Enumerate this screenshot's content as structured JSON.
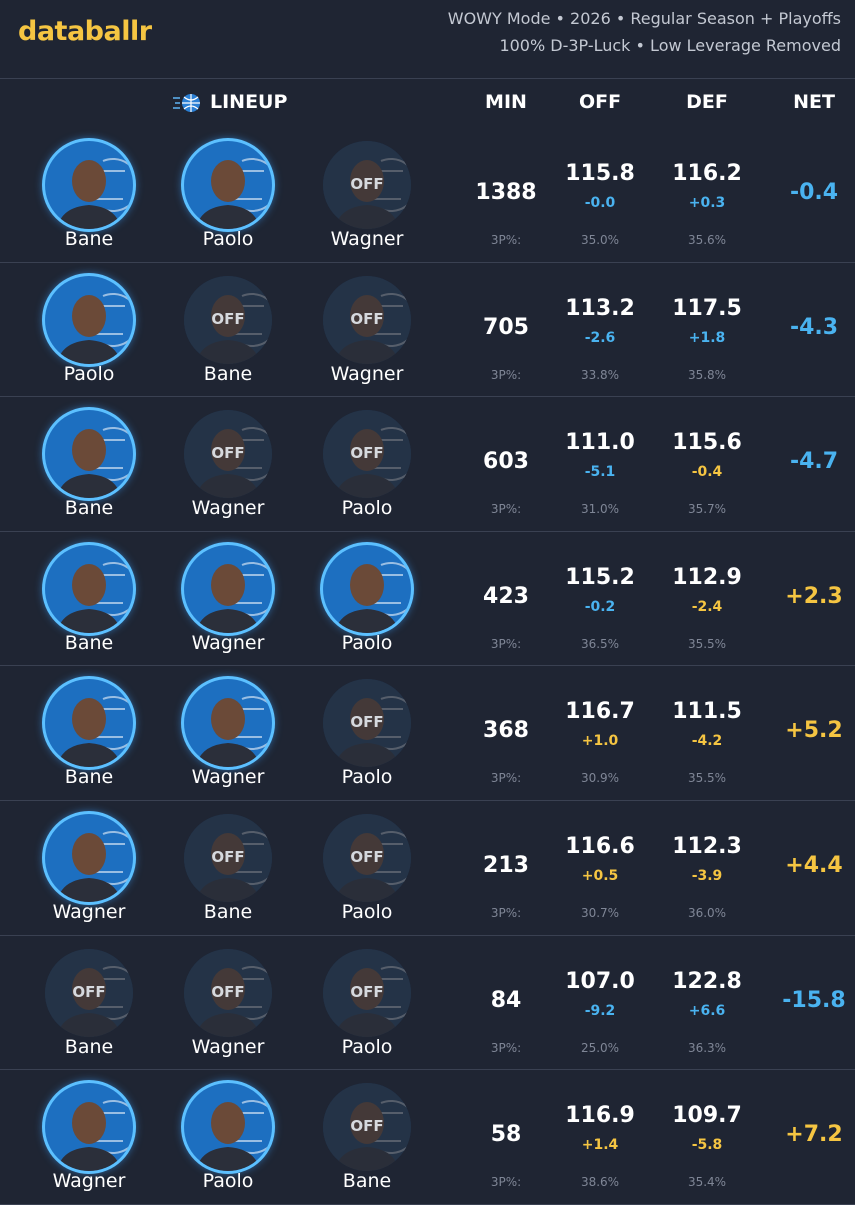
{
  "header": {
    "logo": "databallr",
    "subtitle": [
      "WOWY Mode • 2026 • Regular Season + Playoffs",
      "100% D-3P-Luck • Low Leverage Removed"
    ]
  },
  "table": {
    "columns": [
      "LINEUP",
      "MIN",
      "OFF",
      "DEF",
      "NET"
    ],
    "three_label": "3P%:",
    "rows": [
      {
        "players": [
          {
            "name": "Bane"
          },
          {
            "name": "Paolo"
          },
          {
            "name": "Wagner",
            "status": "OFF"
          }
        ],
        "min": "1388",
        "off": "115.8",
        "off_diff": "-0.0",
        "off_3p": "35.0%",
        "def": "116.2",
        "def_diff": "+0.3",
        "def_3p": "35.6%",
        "net": "-0.4"
      },
      {
        "players": [
          {
            "name": "Paolo"
          },
          {
            "name": "Bane",
            "status": "OFF"
          },
          {
            "name": "Wagner",
            "status": "OFF"
          }
        ],
        "min": "705",
        "off": "113.2",
        "off_diff": "-2.6",
        "off_3p": "33.8%",
        "def": "117.5",
        "def_diff": "+1.8",
        "def_3p": "35.8%",
        "net": "-4.3"
      },
      {
        "players": [
          {
            "name": "Bane"
          },
          {
            "name": "Wagner",
            "status": "OFF"
          },
          {
            "name": "Paolo",
            "status": "OFF"
          }
        ],
        "min": "603",
        "off": "111.0",
        "off_diff": "-5.1",
        "off_3p": "31.0%",
        "def": "115.6",
        "def_diff": "-0.4",
        "def_3p": "35.7%",
        "net": "-4.7"
      },
      {
        "players": [
          {
            "name": "Bane"
          },
          {
            "name": "Wagner"
          },
          {
            "name": "Paolo"
          }
        ],
        "min": "423",
        "off": "115.2",
        "off_diff": "-0.2",
        "off_3p": "36.5%",
        "def": "112.9",
        "def_diff": "-2.4",
        "def_3p": "35.5%",
        "net": "+2.3"
      },
      {
        "players": [
          {
            "name": "Bane"
          },
          {
            "name": "Wagner"
          },
          {
            "name": "Paolo",
            "status": "OFF"
          }
        ],
        "min": "368",
        "off": "116.7",
        "off_diff": "+1.0",
        "off_3p": "30.9%",
        "def": "111.5",
        "def_diff": "-4.2",
        "def_3p": "35.5%",
        "net": "+5.2"
      },
      {
        "players": [
          {
            "name": "Wagner"
          },
          {
            "name": "Bane",
            "status": "OFF"
          },
          {
            "name": "Paolo",
            "status": "OFF"
          }
        ],
        "min": "213",
        "off": "116.6",
        "off_diff": "+0.5",
        "off_3p": "30.7%",
        "def": "112.3",
        "def_diff": "-3.9",
        "def_3p": "36.0%",
        "net": "+4.4"
      },
      {
        "players": [
          {
            "name": "Bane",
            "status": "OFF"
          },
          {
            "name": "Wagner",
            "status": "OFF"
          },
          {
            "name": "Paolo",
            "status": "OFF"
          }
        ],
        "min": "84",
        "off": "107.0",
        "off_diff": "-9.2",
        "off_3p": "25.0%",
        "def": "122.8",
        "def_diff": "+6.6",
        "def_3p": "36.3%",
        "net": "-15.8"
      },
      {
        "players": [
          {
            "name": "Wagner"
          },
          {
            "name": "Paolo"
          },
          {
            "name": "Bane",
            "status": "OFF"
          }
        ],
        "min": "58",
        "off": "116.9",
        "off_diff": "+1.4",
        "off_3p": "38.6%",
        "def": "109.7",
        "def_diff": "-5.8",
        "def_3p": "35.4%",
        "net": "+7.2"
      }
    ]
  }
}
